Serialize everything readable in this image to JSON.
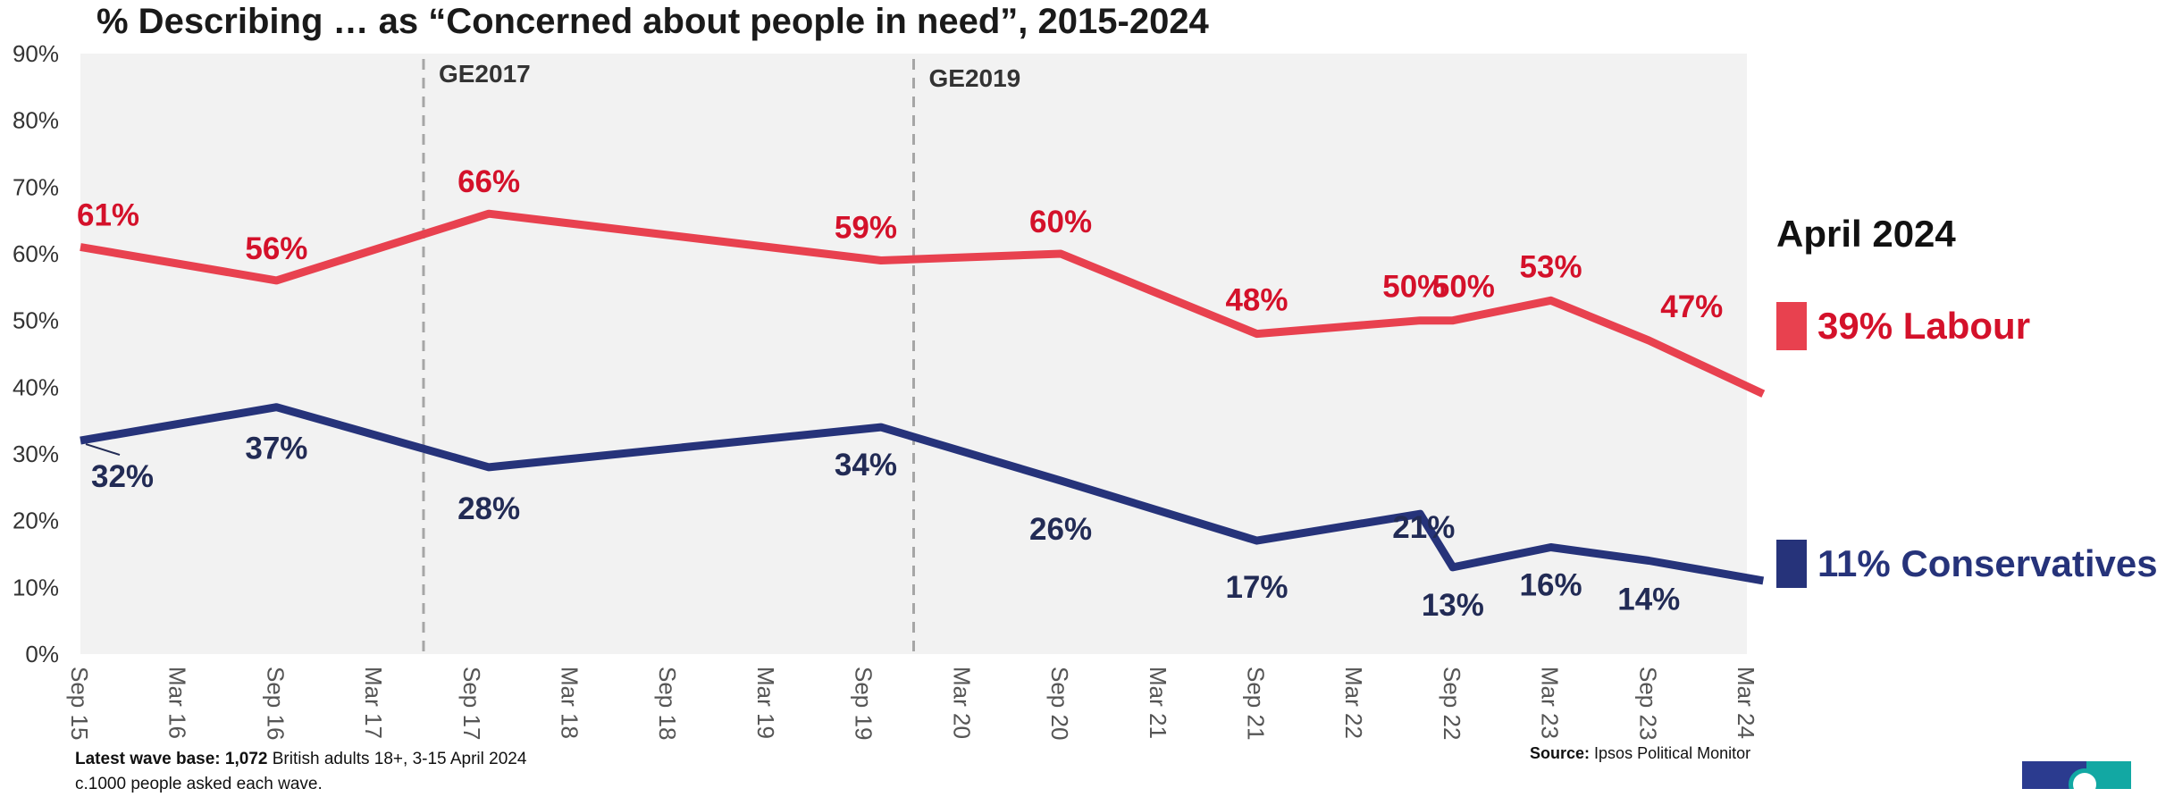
{
  "chart_data": {
    "type": "line",
    "title": "% Describing … as “Concerned about people in need”, 2015-2024",
    "x_tick_labels": [
      "Sep 15",
      "Mar 16",
      "Sep 16",
      "Mar 17",
      "Sep 17",
      "Mar 18",
      "Sep 18",
      "Mar 19",
      "Sep 19",
      "Mar 20",
      "Sep 20",
      "Mar 21",
      "Sep 21",
      "Mar 22",
      "Sep 22",
      "Mar 23",
      "Sep 23",
      "Mar 24"
    ],
    "y_tick_labels": [
      "0%",
      "10%",
      "20%",
      "30%",
      "40%",
      "50%",
      "60%",
      "70%",
      "80%",
      "90%"
    ],
    "ylim": [
      0,
      90
    ],
    "y_unit": "%",
    "grid": false,
    "series": [
      {
        "name": "Labour",
        "color": "#e8414f",
        "label_color": "#d4112a",
        "points": [
          {
            "x": "2015-09",
            "y": 61,
            "label": "61%"
          },
          {
            "x": "2016-09",
            "y": 56,
            "label": "56%"
          },
          {
            "x": "2017-10",
            "y": 66,
            "label": "66%"
          },
          {
            "x": "2019-10",
            "y": 59,
            "label": "59%"
          },
          {
            "x": "2020-09",
            "y": 60,
            "label": "60%"
          },
          {
            "x": "2021-09",
            "y": 48,
            "label": "48%"
          },
          {
            "x": "2022-07",
            "y": 50,
            "label": "50%"
          },
          {
            "x": "2022-09",
            "y": 50,
            "label": "50%"
          },
          {
            "x": "2023-03",
            "y": 53,
            "label": "53%"
          },
          {
            "x": "2023-09",
            "y": 47,
            "label": "47%"
          },
          {
            "x": "2024-04",
            "y": 39,
            "label": ""
          }
        ]
      },
      {
        "name": "Conservatives",
        "color": "#26337a",
        "label_color": "#222b55",
        "points": [
          {
            "x": "2015-09",
            "y": 32,
            "label": "32%"
          },
          {
            "x": "2016-09",
            "y": 37,
            "label": "37%"
          },
          {
            "x": "2017-10",
            "y": 28,
            "label": "28%"
          },
          {
            "x": "2019-10",
            "y": 34,
            "label": "34%"
          },
          {
            "x": "2020-09",
            "y": 26,
            "label": "26%"
          },
          {
            "x": "2021-09",
            "y": 17,
            "label": "17%"
          },
          {
            "x": "2022-07",
            "y": 21,
            "label": "21%"
          },
          {
            "x": "2022-09",
            "y": 13,
            "label": "13%"
          },
          {
            "x": "2023-03",
            "y": 16,
            "label": "16%"
          },
          {
            "x": "2023-09",
            "y": 14,
            "label": "14%"
          },
          {
            "x": "2024-04",
            "y": 11,
            "label": ""
          }
        ]
      }
    ],
    "events": [
      {
        "x": "2017-06",
        "label": "GE2017"
      },
      {
        "x": "2019-12",
        "label": "GE2019"
      }
    ]
  },
  "legend": {
    "heading": "April 2024",
    "items": [
      {
        "text": "39% Labour",
        "color": "#e8414f",
        "text_color": "#d4112a"
      },
      {
        "text": "11% Conservatives",
        "color": "#26337a",
        "text_color": "#26337a"
      }
    ]
  },
  "footnote": {
    "base_label": "Latest wave base:",
    "base_count": "1,072",
    "base_rest": "British adults 18+, 3-15 April 2024",
    "line2": "c.1000 people asked each wave."
  },
  "source": {
    "label": "Source:",
    "text": "Ipsos  Political Monitor"
  }
}
